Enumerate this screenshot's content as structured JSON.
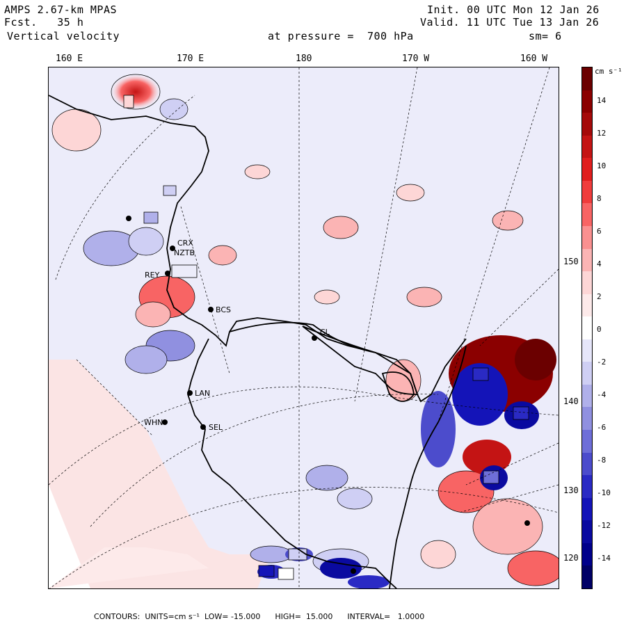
{
  "header": {
    "model": "AMPS 2.67-km MPAS",
    "forecast": "Fcst.   35 h",
    "field": "Vertical velocity",
    "init": "Init. 00 UTC Mon 12 Jan 26",
    "valid": "Valid. 11 UTC Tue 13 Jan 26",
    "pressure_label": "at pressure =  700 hPa",
    "smoothing": "sm= 6"
  },
  "longitude_labels": [
    "160 E",
    "170 E",
    "180",
    "170 W",
    "160 W"
  ],
  "latitude_labels": [
    "150 W",
    "140 W",
    "130 W",
    "120 W"
  ],
  "colorbar": {
    "units_label": "cm s⁻¹",
    "tick_labels": [
      "14",
      "12",
      "10",
      "8",
      "6",
      "4",
      "2",
      "0",
      "-2",
      "-4",
      "-6",
      "-8",
      "-10",
      "-12",
      "-14"
    ],
    "colors": [
      "#6b0000",
      "#8b0000",
      "#a50a0a",
      "#c41414",
      "#e01e1e",
      "#f03c3c",
      "#f86464",
      "#fa9090",
      "#fbb4b4",
      "#fdd6d6",
      "#fdeaea",
      "#ffffff",
      "#e6e6fa",
      "#cfcff4",
      "#b0b0ea",
      "#9090e0",
      "#6e6ed8",
      "#4c4ccc",
      "#2a2ac4",
      "#1414b8",
      "#0a0aa0",
      "#00008b",
      "#000066"
    ]
  },
  "stations": [
    {
      "id": "CRX",
      "label": "CRX"
    },
    {
      "id": "NZTB",
      "label": "NZTB"
    },
    {
      "id": "REY",
      "label": "REY"
    },
    {
      "id": "BCS",
      "label": "BCS"
    },
    {
      "id": "LAN",
      "label": "LAN"
    },
    {
      "id": "WHN",
      "label": "WHN"
    },
    {
      "id": "SEL",
      "label": "SEL"
    },
    {
      "id": "CL",
      "label": "CL"
    }
  ],
  "footer": {
    "contours": "CONTOURS:  UNITS=cm s⁻¹  LOW= -15.000      HIGH=  15.000      INTERVAL=   1.0000"
  }
}
